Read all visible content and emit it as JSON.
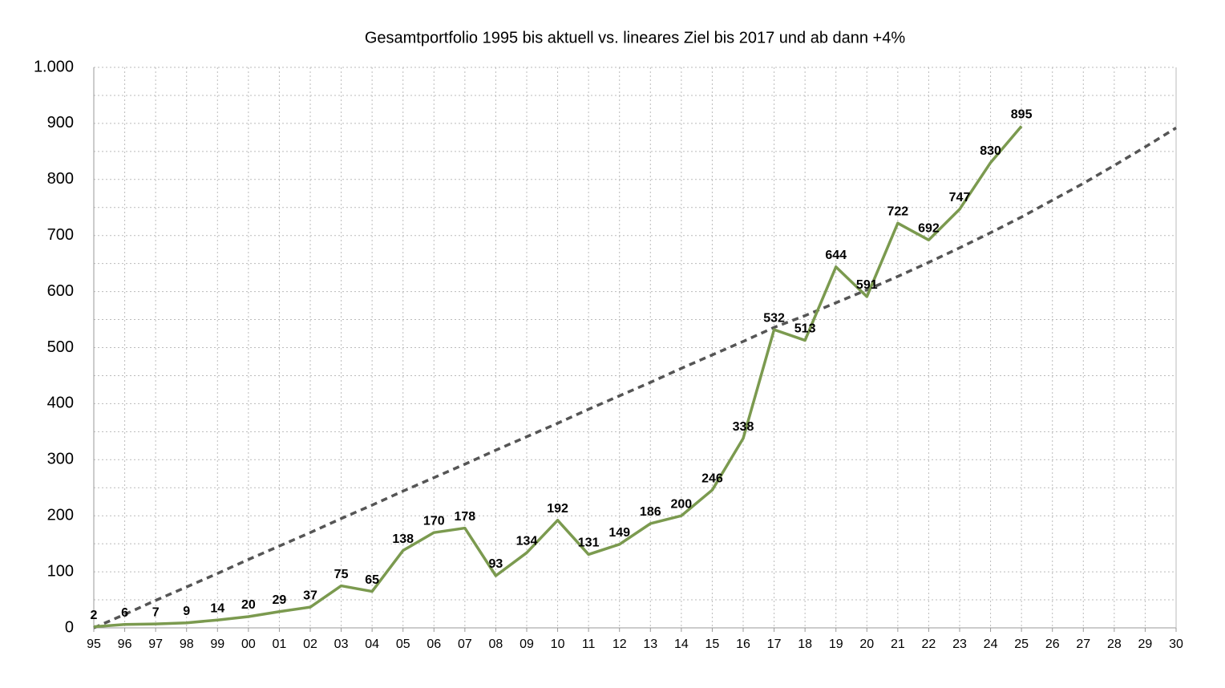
{
  "chart_data": {
    "type": "line",
    "title": "Gesamtportfolio 1995 bis aktuell vs. lineares Ziel bis 2017 und ab dann +4%",
    "categories": [
      "95",
      "96",
      "97",
      "98",
      "99",
      "00",
      "01",
      "02",
      "03",
      "04",
      "05",
      "06",
      "07",
      "08",
      "09",
      "10",
      "11",
      "12",
      "13",
      "14",
      "15",
      "16",
      "17",
      "18",
      "19",
      "20",
      "21",
      "22",
      "23",
      "24",
      "25",
      "26",
      "27",
      "28",
      "29",
      "30"
    ],
    "series": [
      {
        "color": "#7b9a4f",
        "style": "solid",
        "data_labels": true,
        "values": [
          2,
          6,
          7,
          9,
          14,
          20,
          29,
          37,
          75,
          65,
          138,
          170,
          178,
          93,
          134,
          192,
          131,
          149,
          186,
          200,
          246,
          338,
          532,
          513,
          644,
          591,
          722,
          692,
          747,
          830,
          895,
          null,
          null,
          null,
          null,
          null
        ]
      },
      {
        "color": "#555555",
        "style": "dashed",
        "data_labels": false,
        "values": [
          0,
          24,
          49,
          73,
          97,
          122,
          146,
          170,
          195,
          219,
          244,
          268,
          292,
          317,
          341,
          365,
          390,
          414,
          438,
          463,
          487,
          511,
          536,
          557,
          580,
          603,
          627,
          652,
          678,
          705,
          733,
          763,
          793,
          825,
          858,
          892
        ]
      }
    ],
    "ylim": [
      0,
      1000
    ],
    "yticks": [
      0,
      100,
      200,
      300,
      400,
      500,
      600,
      700,
      800,
      900,
      {
        "value": 1000,
        "label": "1.000"
      }
    ],
    "grid": true
  }
}
